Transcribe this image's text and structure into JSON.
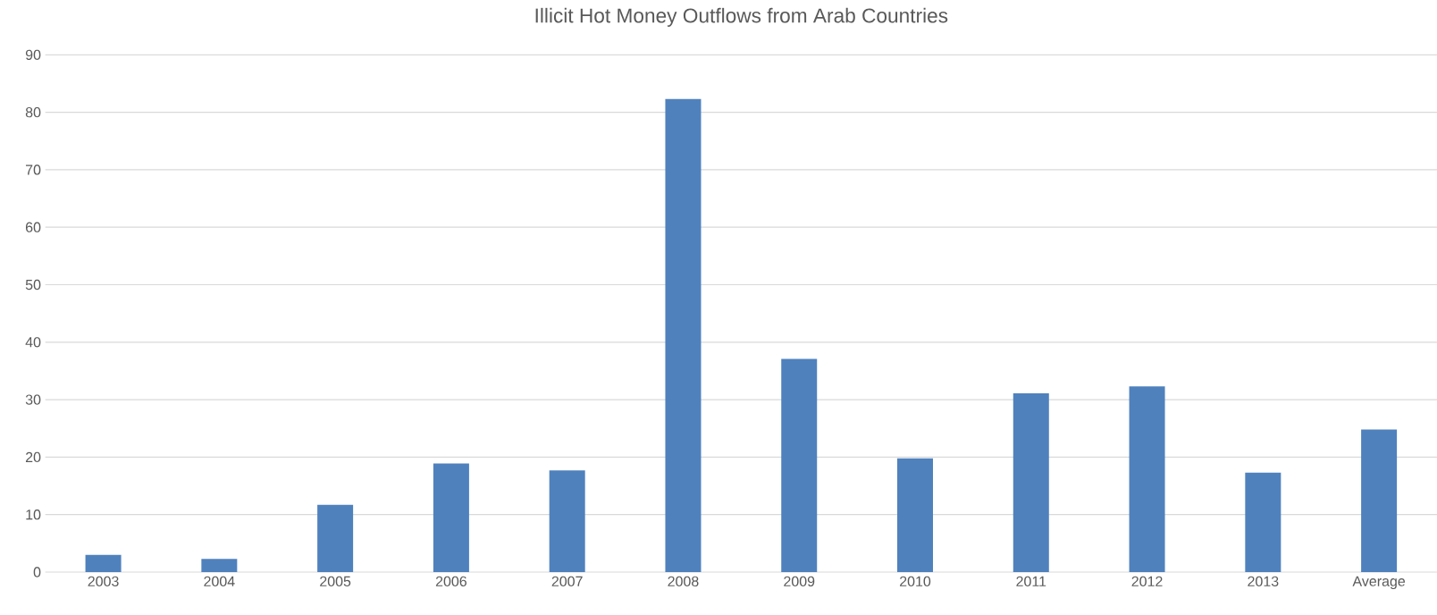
{
  "chart_data": {
    "type": "bar",
    "title": "Illicit Hot Money Outflows from Arab Countries",
    "categories": [
      "2003",
      "2004",
      "2005",
      "2006",
      "2007",
      "2008",
      "2009",
      "2010",
      "2011",
      "2012",
      "2013",
      "Average"
    ],
    "values": [
      3.0,
      2.3,
      11.7,
      18.9,
      17.7,
      82.3,
      37.1,
      19.8,
      31.1,
      32.3,
      17.3,
      24.8
    ],
    "color": "#4f81bd",
    "ylim": [
      0,
      90
    ],
    "yticks": [
      0,
      10,
      20,
      30,
      40,
      50,
      60,
      70,
      80,
      90
    ],
    "grid": "y"
  }
}
